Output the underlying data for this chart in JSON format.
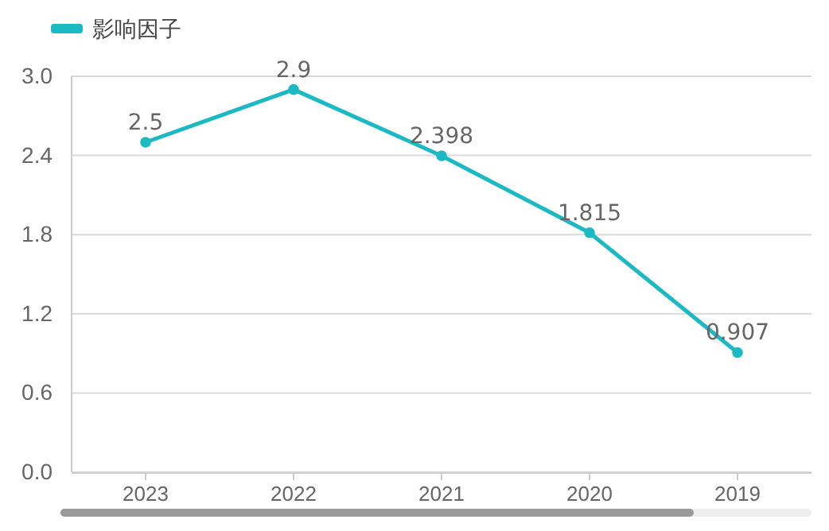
{
  "chart_data": {
    "type": "line",
    "categories": [
      "2023",
      "2022",
      "2021",
      "2020",
      "2019"
    ],
    "series": [
      {
        "name": "影响因子",
        "color": "#1bb9c4",
        "values": [
          2.5,
          2.9,
          2.398,
          1.815,
          0.907
        ]
      }
    ],
    "ylim": [
      0,
      3.0
    ],
    "yticks": [
      {
        "value": 0,
        "label": "0.0"
      },
      {
        "value": 0.6,
        "label": "0.6"
      },
      {
        "value": 1.2,
        "label": "1.2"
      },
      {
        "value": 1.8,
        "label": "1.8"
      },
      {
        "value": 2.4,
        "label": "2.4"
      },
      {
        "value": 3.0,
        "label": "3.0"
      }
    ],
    "grid": "y",
    "legend": "top left",
    "marker": "circle",
    "line_style": "solid",
    "data_labels": true
  }
}
